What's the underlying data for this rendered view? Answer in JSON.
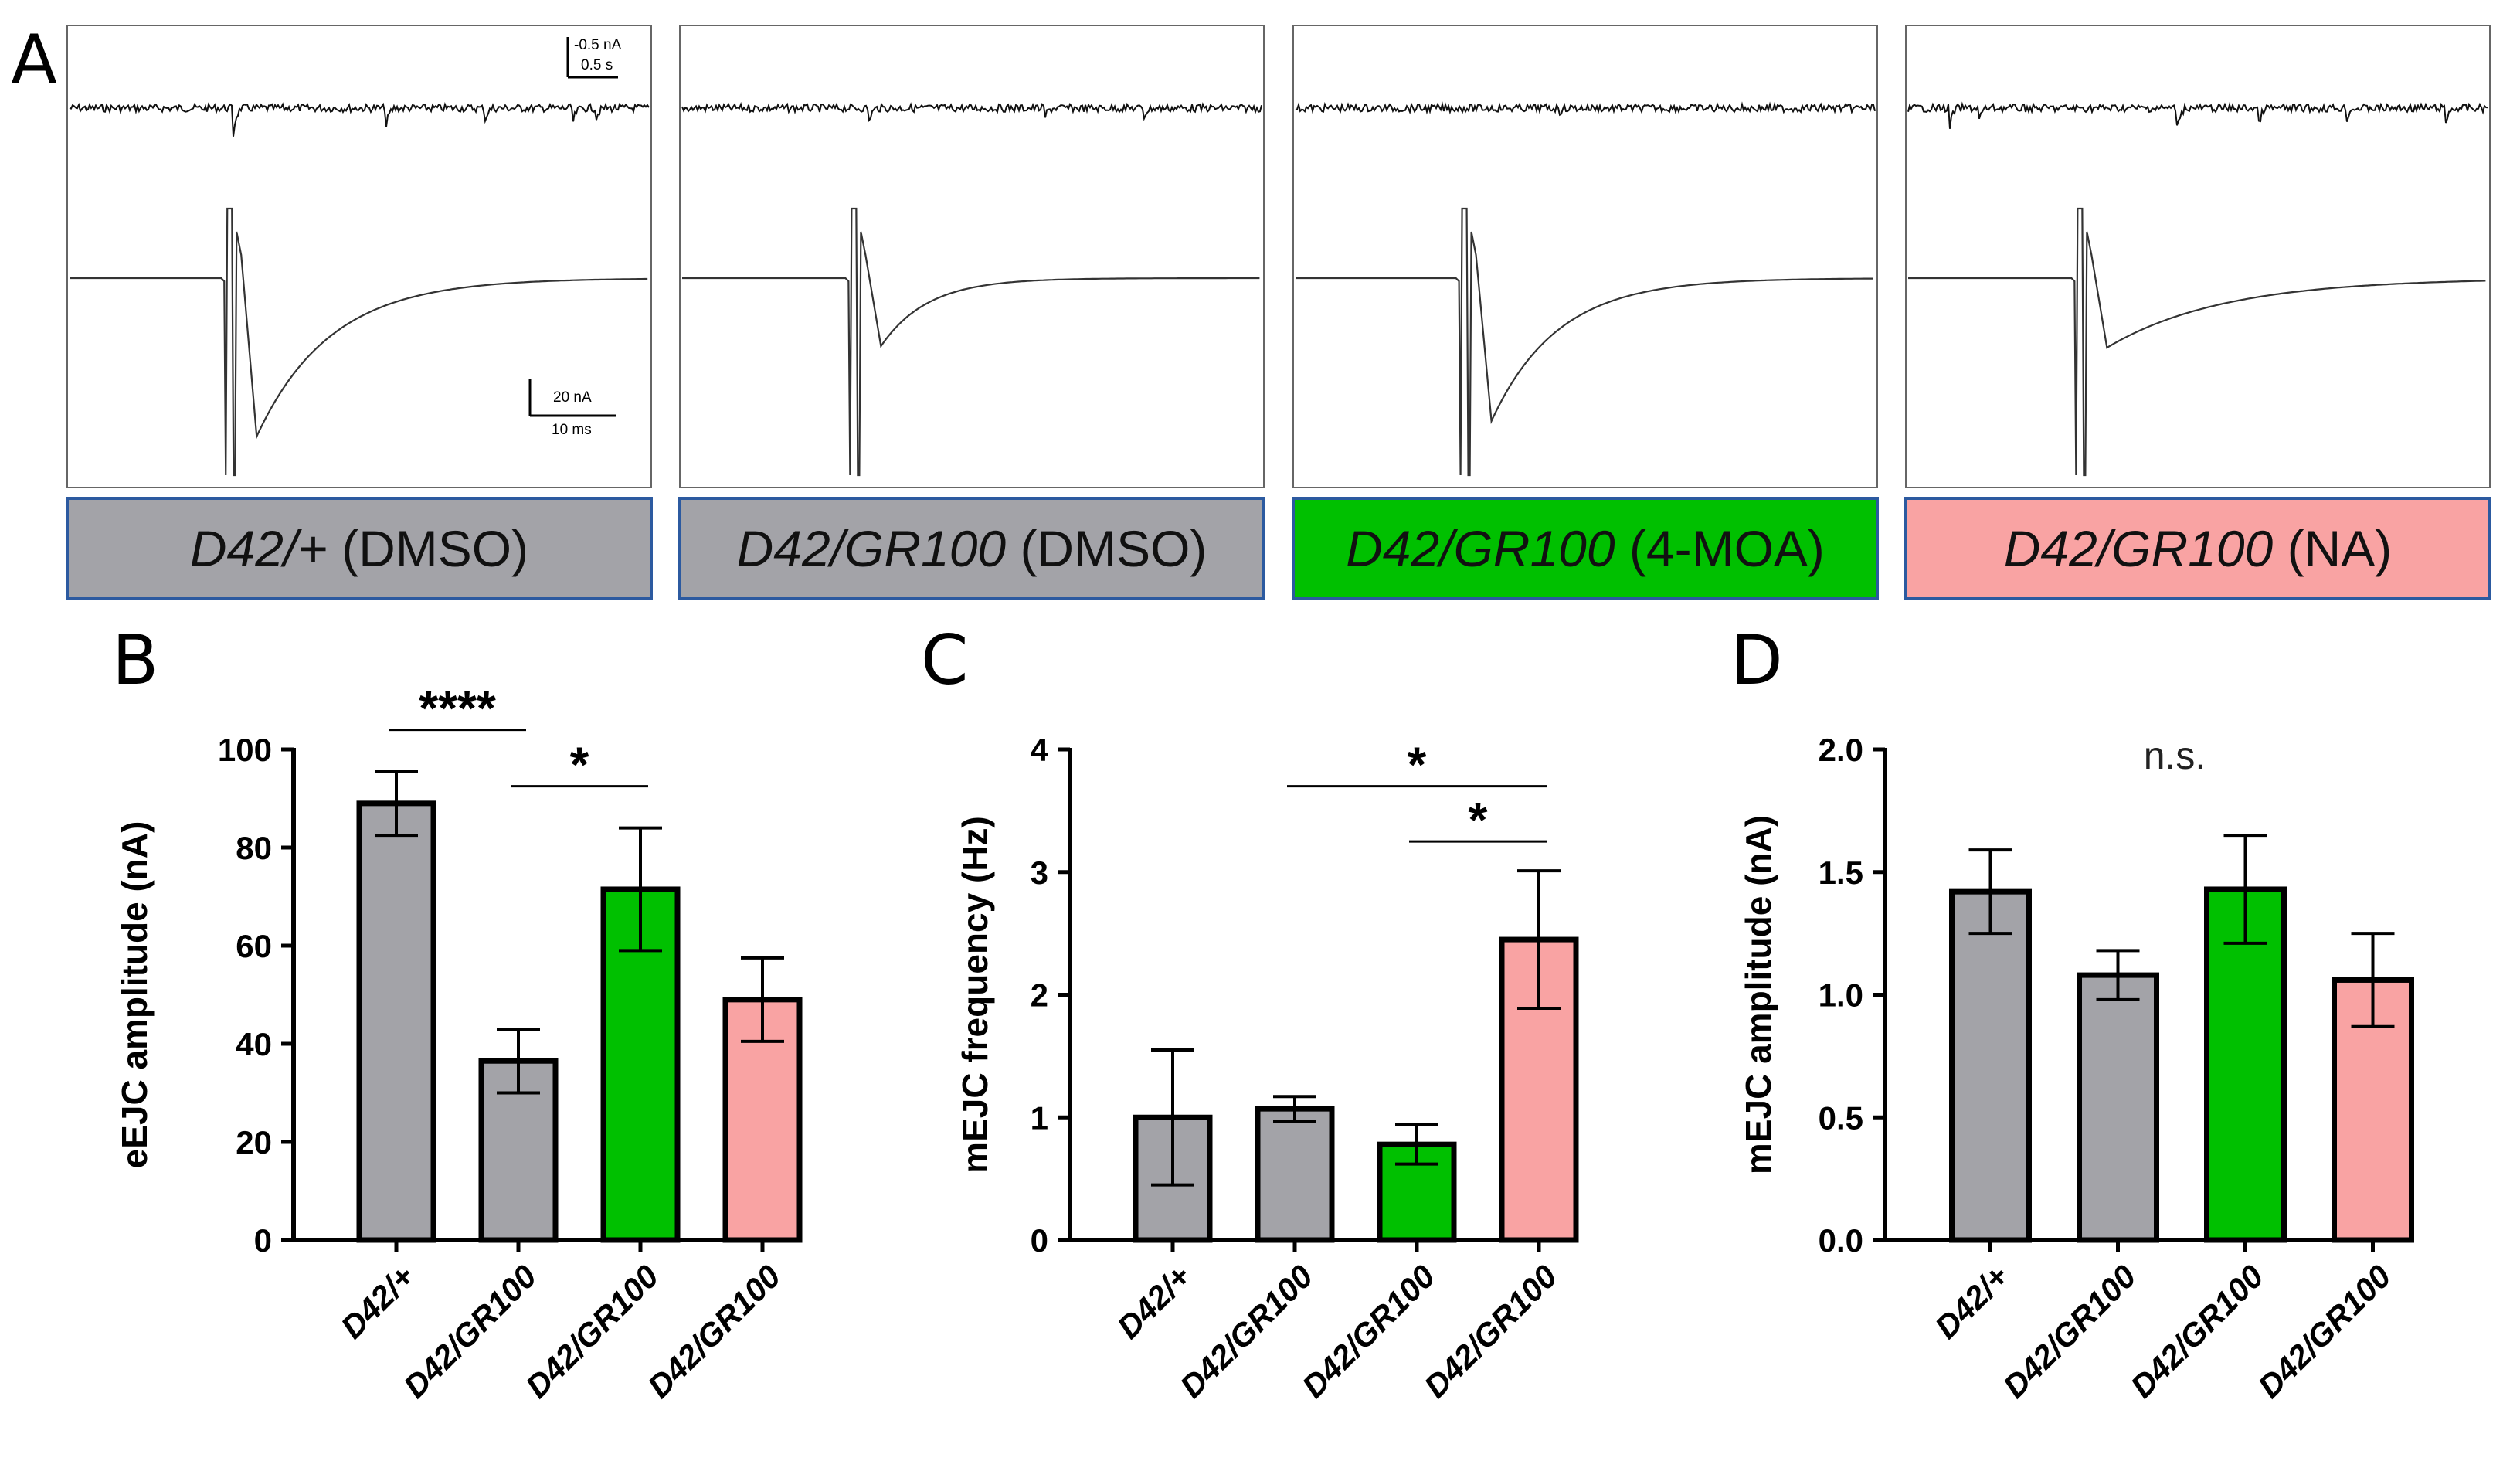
{
  "figure": {
    "panel_letters": {
      "a": "A",
      "b": "B",
      "c": "C",
      "d": "D"
    },
    "scale_bars": {
      "top_current": "-0.5 nA",
      "top_time": "0.5 s",
      "bottom_current": "20 nA",
      "bottom_time": "10 ms"
    },
    "conditions": [
      {
        "genotype": "D42/+",
        "treatment": " (DMSO)",
        "color": "#a3a3a8"
      },
      {
        "genotype": "D42/GR100",
        "treatment": " (DMSO)",
        "color": "#a3a3a8"
      },
      {
        "genotype": "D42/GR100",
        "treatment": " (4-MOA)",
        "color": "#00c000"
      },
      {
        "genotype": "D42/GR100",
        "treatment": " (NA)",
        "color": "#f9a3a3"
      }
    ],
    "label_border_color": "#2c5aa0"
  },
  "chart_data": [
    {
      "panel": "B",
      "type": "bar",
      "ylabel": "eEJC amplitude (nA)",
      "ylim": [
        0,
        100
      ],
      "yticks": [
        0,
        20,
        40,
        60,
        80,
        100
      ],
      "ytick_labels": [
        "0",
        "20",
        "40",
        "60",
        "80",
        "100"
      ],
      "categories": [
        "D42/+",
        "D42/GR100",
        "D42/GR100",
        "D42/GR100"
      ],
      "values": [
        89,
        36.5,
        71.5,
        49
      ],
      "errors": [
        6.5,
        6.5,
        12.5,
        8.5
      ],
      "colors": [
        "#a3a3a8",
        "#a3a3a8",
        "#00c000",
        "#f9a3a3"
      ],
      "significance": [
        {
          "from": 0,
          "to": 1,
          "label": "****",
          "y": 104
        },
        {
          "from": 1,
          "to": 2,
          "label": "*",
          "y": 92.5
        }
      ]
    },
    {
      "panel": "C",
      "type": "bar",
      "ylabel": "mEJC frequency (Hz)",
      "ylim": [
        0,
        4
      ],
      "yticks": [
        0,
        1,
        2,
        3,
        4
      ],
      "ytick_labels": [
        "0",
        "1",
        "2",
        "3",
        "4"
      ],
      "categories": [
        "D42/+",
        "D42/GR100",
        "D42/GR100",
        "D42/GR100"
      ],
      "values": [
        1.0,
        1.07,
        0.78,
        2.45
      ],
      "errors": [
        0.55,
        0.1,
        0.16,
        0.56
      ],
      "colors": [
        "#a3a3a8",
        "#a3a3a8",
        "#00c000",
        "#f9a3a3"
      ],
      "significance": [
        {
          "from": 1,
          "to": 3,
          "label": "*",
          "y": 3.7
        },
        {
          "from": 2,
          "to": 3,
          "label": "*",
          "y": 3.25
        }
      ]
    },
    {
      "panel": "D",
      "type": "bar",
      "ylabel": "mEJC amplitude (nA)",
      "ylim": [
        0,
        2.0
      ],
      "yticks": [
        0,
        0.5,
        1.0,
        1.5,
        2.0
      ],
      "ytick_labels": [
        "0.0",
        "0.5",
        "1.0",
        "1.5",
        "2.0"
      ],
      "categories": [
        "D42/+",
        "D42/GR100",
        "D42/GR100",
        "D42/GR100"
      ],
      "values": [
        1.42,
        1.08,
        1.43,
        1.06
      ],
      "errors": [
        0.17,
        0.1,
        0.22,
        0.19
      ],
      "colors": [
        "#a3a3a8",
        "#a3a3a8",
        "#00c000",
        "#f9a3a3"
      ],
      "annotation": "n.s."
    }
  ]
}
